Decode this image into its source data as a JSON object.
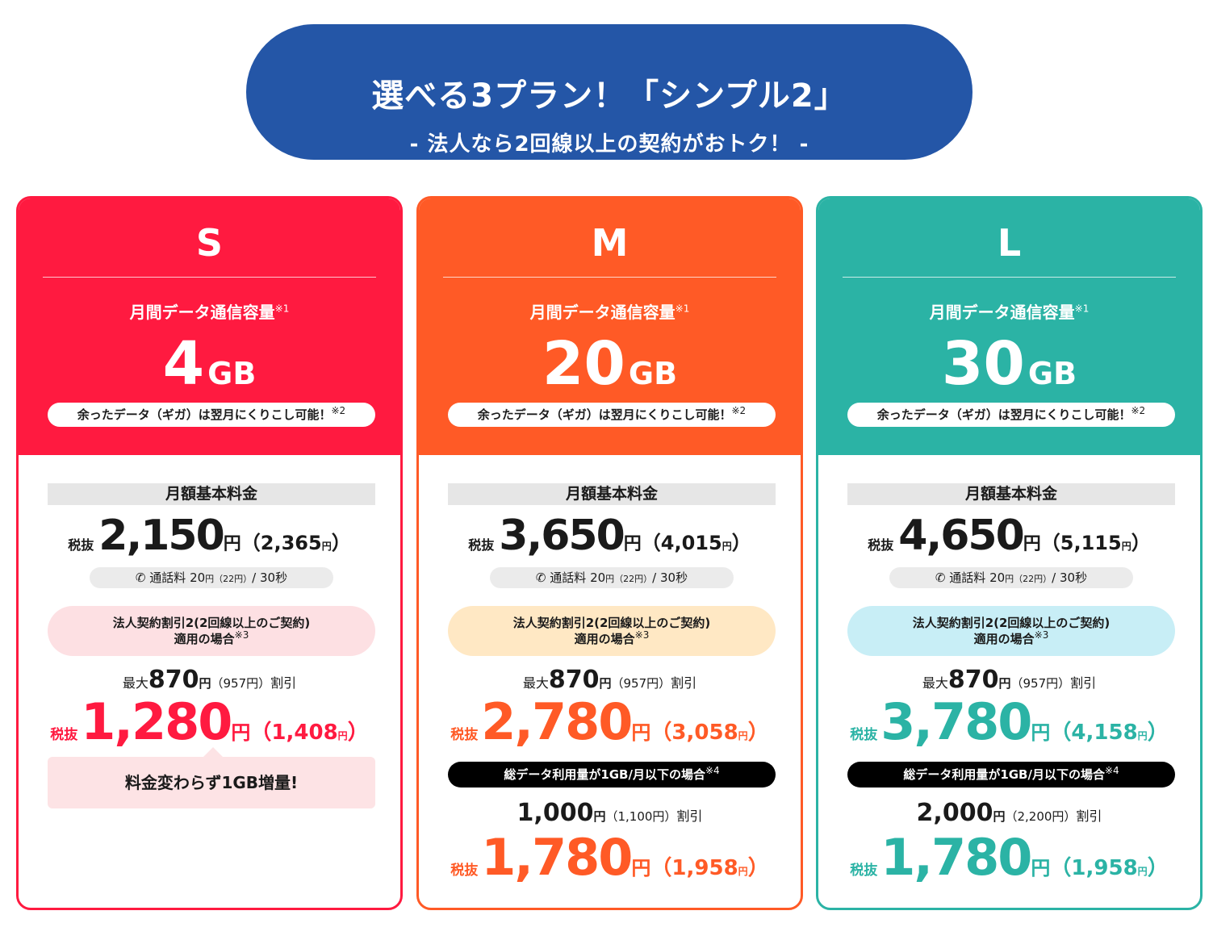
{
  "header": {
    "title": "選べる3プラン！「シンプル2」",
    "subtitle": "- 法人なら2回線以上の契約がおトク！ -"
  },
  "common": {
    "data_label": "月間データ通信容量",
    "note1": "※1",
    "data_unit": "GB",
    "rollover_text": "余ったデータ（ギガ）は翌月にくりこし可能！",
    "note2": "※2",
    "fee_label": "月額基本料金",
    "tax_excl": "税抜",
    "yen": "円",
    "paren_open": "（",
    "paren_close": "）",
    "call_label": "通話料",
    "call_amount": "20",
    "call_incl": "（22円）",
    "call_per": "/ 30秒",
    "corp_discount_line1": "法人契約割引2(2回線以上のご契約)",
    "corp_discount_line2": "適用の場合",
    "note3": "※3",
    "max_prefix": "最大",
    "discount_amount": "870",
    "discount_incl": "（957円）",
    "discount_suffix": "割引",
    "data_condition": "総データ利用量が1GB/月以下の場合",
    "note4": "※4"
  },
  "plans": [
    {
      "name": "S",
      "data_amount": "4",
      "price": "2,150",
      "price_incl": "2,365",
      "disc_price": "1,280",
      "disc_price_incl": "1,408",
      "bubble_text": "料金変わらず1GB増量!",
      "color": "#ff1a40",
      "discount_pill_color": "#fde0e3"
    },
    {
      "name": "M",
      "data_amount": "20",
      "price": "3,650",
      "price_incl": "4,015",
      "disc_price": "2,780",
      "disc_price_incl": "3,058",
      "extra_discount": "1,000",
      "extra_discount_incl": "（1,100円）",
      "final_price": "1,780",
      "final_price_incl": "1,958",
      "color": "#ff5a26",
      "discount_pill_color": "#ffe8c4"
    },
    {
      "name": "L",
      "data_amount": "30",
      "price": "4,650",
      "price_incl": "5,115",
      "disc_price": "3,780",
      "disc_price_incl": "4,158",
      "extra_discount": "2,000",
      "extra_discount_incl": "（2,200円）",
      "final_price": "1,780",
      "final_price_incl": "1,958",
      "color": "#2bb3a5",
      "discount_pill_color": "#c8eef6"
    }
  ]
}
